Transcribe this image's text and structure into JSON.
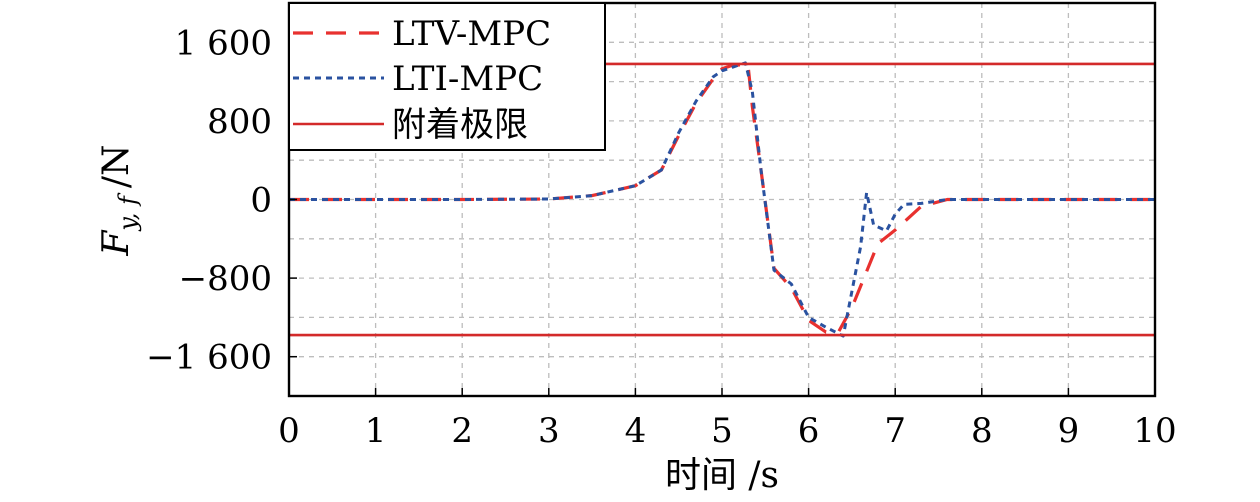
{
  "chart_data": {
    "type": "line",
    "title": "",
    "xlabel": "时间 /s",
    "ylabel_main": "F",
    "ylabel_sub": "y, f",
    "ylabel_unit": "/N",
    "xlim": [
      0,
      10
    ],
    "ylim": [
      -2000,
      2000
    ],
    "x_ticks": [
      0,
      1,
      2,
      3,
      4,
      5,
      6,
      7,
      8,
      9,
      10
    ],
    "x_tick_labels": [
      "0",
      "1",
      "2",
      "3",
      "4",
      "5",
      "6",
      "7",
      "8",
      "9",
      "10"
    ],
    "y_ticks": [
      1600,
      800,
      0,
      -800,
      -1600
    ],
    "y_tick_labels": [
      "1 600",
      "800",
      "0",
      "−800",
      "−1 600"
    ],
    "y_minor_gridlines": [
      -1200,
      -400,
      400,
      1200
    ],
    "grid": true,
    "legend_position": "top-left",
    "series": [
      {
        "name": "LTV-MPC",
        "color": "#e8312f",
        "style": "dashed",
        "x": [
          0,
          1,
          2,
          3,
          3.5,
          4,
          4.3,
          4.5,
          4.7,
          4.9,
          5.0,
          5.1,
          5.2,
          5.3,
          5.35,
          5.45,
          5.6,
          5.8,
          6.0,
          6.2,
          6.35,
          6.5,
          6.8,
          7.0,
          7.3,
          7.6,
          8,
          9,
          10
        ],
        "y": [
          0,
          0,
          0,
          5,
          40,
          140,
          300,
          650,
          980,
          1230,
          1330,
          1360,
          1370,
          1370,
          950,
          300,
          -700,
          -900,
          -1230,
          -1350,
          -1340,
          -1100,
          -450,
          -310,
          -70,
          0,
          0,
          0,
          0
        ]
      },
      {
        "name": "LTI-MPC",
        "color": "#2a52a0",
        "style": "dotted",
        "x": [
          0,
          1,
          2,
          3,
          3.5,
          4,
          4.3,
          4.5,
          4.7,
          4.9,
          5.0,
          5.1,
          5.2,
          5.27,
          5.35,
          5.45,
          5.6,
          5.8,
          6.0,
          6.2,
          6.4,
          6.6,
          6.67,
          6.75,
          6.9,
          7.0,
          7.1,
          7.3,
          7.6,
          8,
          9,
          10
        ],
        "y": [
          0,
          0,
          0,
          5,
          40,
          140,
          300,
          680,
          1000,
          1250,
          1310,
          1340,
          1370,
          1390,
          1100,
          300,
          -720,
          -860,
          -1200,
          -1300,
          -1390,
          -480,
          70,
          -260,
          -320,
          -150,
          -50,
          -40,
          0,
          0,
          0,
          0
        ]
      },
      {
        "name": "附着极限",
        "color": "#d32a2a",
        "style": "solid",
        "bounds": [
          1380,
          -1380
        ]
      }
    ]
  }
}
